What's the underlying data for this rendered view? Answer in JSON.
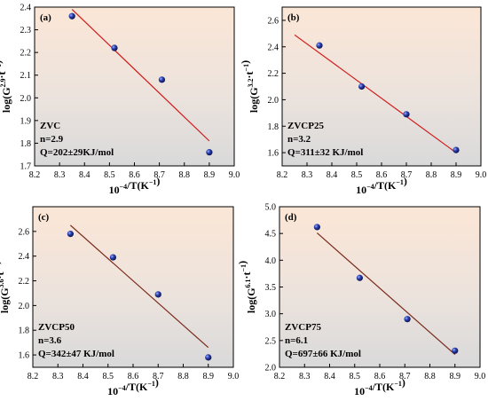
{
  "chart_data": [
    {
      "type": "scatter",
      "panel_label": "(a)",
      "annotations": [
        "ZVC",
        "n=2.9",
        "Q=202±29KJ/mol"
      ],
      "xlabel_base": "10",
      "xlabel_exp": "−4",
      "xlabel_rest": "/T(K",
      "xlabel_exp2": "−1",
      "xlabel_close": ")",
      "ylabel_pre": "log(G",
      "ylabel_exp": "2.9",
      "ylabel_mid": "·t",
      "ylabel_exp2": "−1",
      "ylabel_post": ")",
      "xlim": [
        8.2,
        9.0
      ],
      "ylim": [
        1.7,
        2.4
      ],
      "xticks": [
        "8.2",
        "8.3",
        "8.4",
        "8.5",
        "8.6",
        "8.7",
        "8.8",
        "8.9",
        "9.0"
      ],
      "yticks": [
        "1.7",
        "1.8",
        "1.9",
        "2.0",
        "2.1",
        "2.2",
        "2.3",
        "2.4"
      ],
      "x": [
        8.35,
        8.52,
        8.71,
        8.9
      ],
      "y": [
        2.36,
        2.22,
        2.08,
        1.76
      ],
      "fit": {
        "x": [
          8.35,
          8.9
        ],
        "y": [
          2.39,
          1.81
        ]
      },
      "fit_color": "#d11a1a"
    },
    {
      "type": "scatter",
      "panel_label": "(b)",
      "annotations": [
        "ZVCP25",
        "n=3.2",
        "Q=311±32 KJ/mol"
      ],
      "xlabel_base": "10",
      "xlabel_exp": "−4",
      "xlabel_rest": "/T(K",
      "xlabel_exp2": "−1",
      "xlabel_close": ")",
      "ylabel_pre": "log(G",
      "ylabel_exp": "3.2",
      "ylabel_mid": "·t",
      "ylabel_exp2": "−1",
      "ylabel_post": ")",
      "xlim": [
        8.2,
        9.0
      ],
      "ylim": [
        1.5,
        2.7
      ],
      "xticks": [
        "8.2",
        "8.3",
        "8.4",
        "8.5",
        "8.6",
        "8.7",
        "8.8",
        "8.9",
        "9.0"
      ],
      "yticks": [
        "1.6",
        "1.8",
        "2.0",
        "2.2",
        "2.4",
        "2.6"
      ],
      "x": [
        8.35,
        8.52,
        8.7,
        8.9
      ],
      "y": [
        2.41,
        2.1,
        1.89,
        1.62
      ],
      "fit": {
        "x": [
          8.25,
          8.9
        ],
        "y": [
          2.49,
          1.6
        ]
      },
      "fit_color": "#d11a1a"
    },
    {
      "type": "scatter",
      "panel_label": "(c)",
      "annotations": [
        "ZVCP50",
        "n=3.6",
        "Q=342±47 KJ/mol"
      ],
      "xlabel_base": "10",
      "xlabel_exp": "−4",
      "xlabel_rest": "/T(K",
      "xlabel_exp2": "−1",
      "xlabel_close": ")",
      "ylabel_pre": "log(G",
      "ylabel_exp": "3.6",
      "ylabel_mid": "·t",
      "ylabel_exp2": "−1",
      "ylabel_post": ")",
      "xlim": [
        8.2,
        9.0
      ],
      "ylim": [
        1.5,
        2.8
      ],
      "xticks": [
        "8.2",
        "8.3",
        "8.4",
        "8.5",
        "8.6",
        "8.7",
        "8.8",
        "8.9",
        "9.0"
      ],
      "yticks": [
        "1.6",
        "1.8",
        "2.0",
        "2.2",
        "2.4",
        "2.6"
      ],
      "x": [
        8.35,
        8.52,
        8.7,
        8.9
      ],
      "y": [
        2.58,
        2.39,
        2.09,
        1.58
      ],
      "fit": {
        "x": [
          8.35,
          8.9
        ],
        "y": [
          2.65,
          1.66
        ]
      },
      "fit_color": "#7a2a1a"
    },
    {
      "type": "scatter",
      "panel_label": "(d)",
      "annotations": [
        "ZVCP75",
        "n=6.1",
        "Q=697±66 KJ/mol"
      ],
      "xlabel_base": "10",
      "xlabel_exp": "−4",
      "xlabel_rest": "/T(K",
      "xlabel_exp2": "−1",
      "xlabel_close": ")",
      "ylabel_pre": "log(G",
      "ylabel_exp": "6.1",
      "ylabel_mid": "·t",
      "ylabel_exp2": "−1",
      "ylabel_post": ")",
      "xlim": [
        8.2,
        9.0
      ],
      "ylim": [
        2.0,
        5.0
      ],
      "xticks": [
        "8.2",
        "8.3",
        "8.4",
        "8.5",
        "8.6",
        "8.7",
        "8.8",
        "8.9",
        "9.0"
      ],
      "yticks": [
        "2.0",
        "2.5",
        "3.0",
        "3.5",
        "4.0",
        "4.5",
        "5.0"
      ],
      "x": [
        8.35,
        8.52,
        8.71,
        8.9
      ],
      "y": [
        4.62,
        3.67,
        2.9,
        2.31
      ],
      "fit": {
        "x": [
          8.35,
          8.9
        ],
        "y": [
          4.51,
          2.24
        ]
      },
      "fit_color": "#7a2a1a"
    }
  ]
}
